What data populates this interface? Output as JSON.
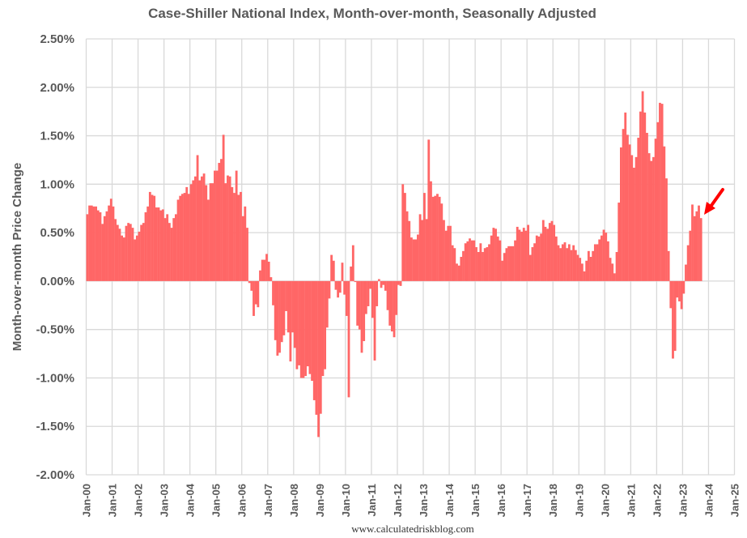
{
  "chart_data": {
    "type": "bar",
    "title": "Case-Shiller National Index, Month-over-month, Seasonally Adjusted",
    "xlabel": "",
    "ylabel": "Month-over-month Price Change",
    "frequency": "monthly",
    "x_start": "Jan-00",
    "ylim": [
      -2.0,
      2.5
    ],
    "yticks": [
      "2.50%",
      "2.00%",
      "1.50%",
      "1.00%",
      "0.50%",
      "0.00%",
      "-0.50%",
      "-1.00%",
      "-1.50%",
      "-2.00%"
    ],
    "xticks": [
      "Jan-00",
      "Jan-01",
      "Jan-02",
      "Jan-03",
      "Jan-04",
      "Jan-05",
      "Jan-06",
      "Jan-07",
      "Jan-08",
      "Jan-09",
      "Jan-10",
      "Jan-11",
      "Jan-12",
      "Jan-13",
      "Jan-14",
      "Jan-15",
      "Jan-16",
      "Jan-17",
      "Jan-18",
      "Jan-19",
      "Jan-20",
      "Jan-21",
      "Jan-22",
      "Jan-23",
      "Jan-24",
      "Jan-25"
    ],
    "grid": true,
    "bar_color": "#ff6666",
    "annotation": "red arrow pointing to latest value",
    "values": [
      0.69,
      0.78,
      0.78,
      0.77,
      0.77,
      0.73,
      0.71,
      0.59,
      0.67,
      0.72,
      0.78,
      0.85,
      0.77,
      0.64,
      0.58,
      0.54,
      0.47,
      0.45,
      0.57,
      0.6,
      0.59,
      0.55,
      0.43,
      0.47,
      0.51,
      0.58,
      0.6,
      0.71,
      0.77,
      0.92,
      0.89,
      0.88,
      0.76,
      0.76,
      0.73,
      0.74,
      0.65,
      0.69,
      0.6,
      0.55,
      0.65,
      0.69,
      0.84,
      0.88,
      0.9,
      0.91,
      0.97,
      0.9,
      1.0,
      1.04,
      1.08,
      1.3,
      1.04,
      1.08,
      1.11,
      0.99,
      0.84,
      1.01,
      1.01,
      1.14,
      1.14,
      1.22,
      1.26,
      1.51,
      1.01,
      1.09,
      1.08,
      0.97,
      0.91,
      1.14,
      0.89,
      0.92,
      0.67,
      0.77,
      0.55,
      -0.02,
      -0.1,
      -0.36,
      -0.24,
      -0.27,
      0.11,
      0.22,
      0.22,
      0.28,
      0.2,
      0.04,
      -0.25,
      -0.61,
      -0.77,
      -0.74,
      -0.63,
      -0.56,
      -0.31,
      -0.53,
      -0.83,
      -0.53,
      -0.69,
      -0.91,
      -0.87,
      -1.0,
      -1.0,
      -0.98,
      -0.88,
      -0.96,
      -1.03,
      -1.23,
      -1.38,
      -1.61,
      -1.37,
      -0.98,
      -0.91,
      -0.48,
      -0.18,
      0.27,
      0.21,
      -0.09,
      -0.17,
      -0.12,
      0.19,
      -0.14,
      -0.36,
      -1.2,
      0.15,
      0.37,
      -0.01,
      -0.46,
      -0.5,
      -0.74,
      -0.62,
      -0.34,
      -0.26,
      -0.08,
      -0.38,
      -0.82,
      -0.26,
      0.02,
      -0.07,
      -0.04,
      -0.1,
      -0.3,
      -0.46,
      -0.52,
      -0.58,
      -0.35,
      -0.04,
      -0.05,
      1.0,
      0.91,
      0.72,
      0.62,
      0.45,
      0.43,
      0.43,
      0.48,
      0.69,
      0.63,
      0.91,
      0.64,
      1.46,
      1.03,
      0.87,
      0.88,
      0.9,
      0.87,
      0.8,
      0.63,
      0.52,
      0.57,
      0.57,
      0.37,
      0.34,
      0.18,
      0.16,
      0.25,
      0.31,
      0.39,
      0.41,
      0.44,
      0.42,
      0.42,
      0.35,
      0.3,
      0.39,
      0.3,
      0.34,
      0.35,
      0.38,
      0.47,
      0.55,
      0.54,
      0.46,
      0.42,
      0.21,
      0.29,
      0.34,
      0.36,
      0.36,
      0.36,
      0.42,
      0.56,
      0.53,
      0.51,
      0.55,
      0.52,
      0.58,
      0.27,
      0.35,
      0.39,
      0.47,
      0.46,
      0.49,
      0.63,
      0.56,
      0.54,
      0.6,
      0.62,
      0.58,
      0.46,
      0.37,
      0.34,
      0.38,
      0.4,
      0.34,
      0.38,
      0.32,
      0.37,
      0.32,
      0.27,
      0.24,
      0.18,
      0.1,
      0.21,
      0.31,
      0.25,
      0.31,
      0.38,
      0.38,
      0.43,
      0.47,
      0.53,
      0.5,
      0.41,
      0.24,
      0.18,
      0.08,
      0.3,
      0.81,
      1.38,
      1.57,
      1.74,
      1.51,
      1.41,
      1.3,
      1.17,
      1.28,
      1.48,
      1.75,
      1.96,
      1.74,
      1.53,
      1.32,
      1.24,
      1.28,
      1.47,
      1.64,
      1.84,
      1.83,
      1.39,
      1.06,
      0.31,
      -0.28,
      -0.8,
      -0.72,
      -0.17,
      -0.21,
      -0.29,
      -0.13,
      0.17,
      0.37,
      0.52,
      0.79,
      0.67,
      0.72,
      0.78,
      0.65
    ]
  },
  "footer": {
    "source": "www.calculatedriskblog.com"
  }
}
